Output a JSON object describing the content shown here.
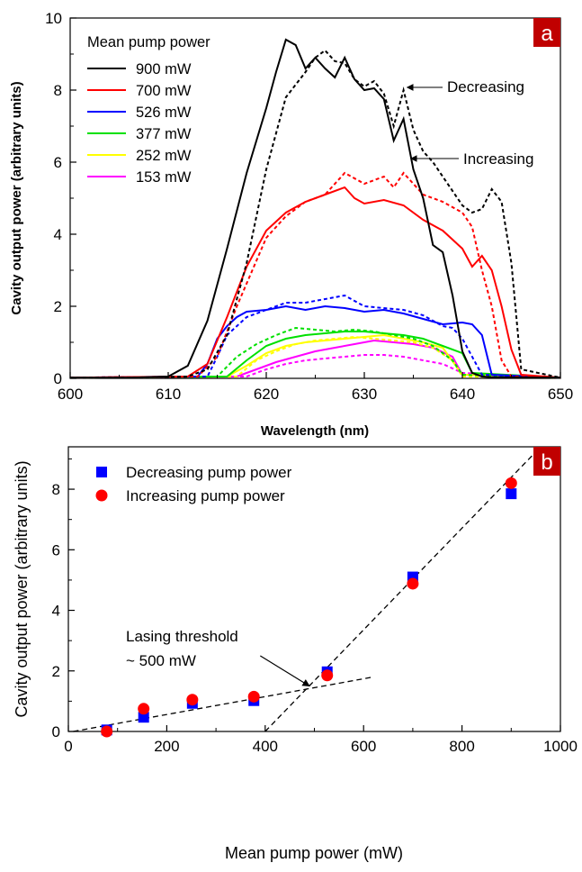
{
  "chart_data": [
    {
      "type": "line",
      "panel_label": "a",
      "xlabel": "Wavelength (nm)",
      "ylabel": "Cavity output power (arbitrary units)",
      "xlim": [
        600,
        650
      ],
      "ylim": [
        0,
        10
      ],
      "xticks": [
        600,
        610,
        620,
        630,
        640,
        650
      ],
      "yticks": [
        0,
        2,
        4,
        6,
        8,
        10
      ],
      "legend_title": "Mean pump power",
      "legend_position": "top-left",
      "line_styles": {
        "increasing": "solid",
        "decreasing": "dashed"
      },
      "annotations": [
        {
          "text": "Decreasing",
          "x": 634.0,
          "y": 7.95
        },
        {
          "text": "Increasing",
          "x": 634.2,
          "y": 6.0
        }
      ],
      "series": [
        {
          "name": "900 mW",
          "color": "#000000",
          "increasing": {
            "x": [
              600,
              606,
              610,
              612,
              614,
              616,
              618,
              620,
              621,
              622,
              623,
              624,
              625,
              626,
              627,
              628,
              629,
              630,
              631,
              632,
              633,
              634,
              635,
              636,
              637,
              638,
              639,
              640,
              641,
              642,
              643,
              650
            ],
            "y": [
              0.02,
              0.02,
              0.05,
              0.35,
              1.6,
              3.6,
              5.7,
              7.5,
              8.5,
              9.4,
              9.25,
              8.6,
              8.9,
              8.6,
              8.35,
              8.9,
              8.3,
              8.0,
              8.05,
              7.75,
              6.6,
              7.2,
              5.8,
              5.0,
              3.7,
              3.5,
              2.3,
              0.75,
              0.15,
              0.05,
              0.03,
              0.02
            ]
          },
          "decreasing": {
            "x": [
              600,
              606,
              612,
              614,
              616,
              618,
              620,
              622,
              624,
              625,
              626,
              627,
              628,
              629,
              630,
              631,
              632,
              633,
              634,
              635,
              636,
              637,
              638,
              639,
              640,
              641,
              642,
              643,
              644,
              645,
              646,
              650
            ],
            "y": [
              0.02,
              0.02,
              0.05,
              0.25,
              1.2,
              3.2,
              5.8,
              7.8,
              8.5,
              8.9,
              9.1,
              8.8,
              8.75,
              8.3,
              8.1,
              8.25,
              7.9,
              7.0,
              8.0,
              6.9,
              6.3,
              6.0,
              5.6,
              5.2,
              4.8,
              4.6,
              4.7,
              5.25,
              4.9,
              3.2,
              0.25,
              0.02
            ]
          }
        },
        {
          "name": "700 mW",
          "color": "#ff0000",
          "increasing": {
            "x": [
              600,
              612,
              614,
              616,
              618,
              620,
              622,
              624,
              626,
              628,
              629,
              630,
              632,
              634,
              636,
              638,
              640,
              641,
              642,
              643,
              644,
              645,
              646,
              650
            ],
            "y": [
              0.02,
              0.05,
              0.4,
              1.7,
              3.1,
              4.1,
              4.6,
              4.9,
              5.1,
              5.3,
              5.0,
              4.85,
              4.95,
              4.8,
              4.4,
              4.1,
              3.6,
              3.1,
              3.4,
              3.0,
              2.0,
              0.8,
              0.1,
              0.02
            ]
          },
          "decreasing": {
            "x": [
              600,
              613,
              615,
              617,
              620,
              622,
              624,
              626,
              628,
              630,
              632,
              633,
              634,
              636,
              638,
              640,
              641,
              642,
              643,
              644,
              645,
              650
            ],
            "y": [
              0.02,
              0.05,
              0.6,
              2.0,
              3.9,
              4.5,
              4.9,
              5.1,
              5.7,
              5.4,
              5.6,
              5.3,
              5.7,
              5.1,
              4.9,
              4.6,
              4.2,
              3.0,
              2.0,
              0.5,
              0.05,
              0.02
            ]
          }
        },
        {
          "name": "526 mW",
          "color": "#0000ff",
          "increasing": {
            "x": [
              600,
              613,
              614,
              615,
              616,
              617,
              618,
              620,
              622,
              624,
              626,
              628,
              630,
              632,
              634,
              636,
              638,
              640,
              641,
              642,
              643,
              650
            ],
            "y": [
              0.02,
              0.05,
              0.4,
              1.1,
              1.45,
              1.7,
              1.85,
              1.9,
              2.0,
              1.9,
              2.0,
              1.95,
              1.85,
              1.9,
              1.8,
              1.65,
              1.5,
              1.55,
              1.5,
              1.2,
              0.1,
              0.02
            ]
          },
          "decreasing": {
            "x": [
              600,
              614,
              615,
              616,
              618,
              620,
              622,
              624,
              626,
              628,
              630,
              632,
              634,
              636,
              638,
              639,
              640,
              642,
              650
            ],
            "y": [
              0.02,
              0.05,
              0.6,
              1.2,
              1.7,
              1.9,
              2.1,
              2.1,
              2.2,
              2.3,
              2.0,
              1.95,
              1.9,
              1.75,
              1.45,
              1.4,
              1.1,
              0.1,
              0.02
            ]
          }
        },
        {
          "name": "377 mW",
          "color": "#00e000",
          "increasing": {
            "x": [
              600,
              616,
              618,
              620,
              622,
              624,
              626,
              628,
              630,
              632,
              634,
              636,
              638,
              640,
              641,
              650
            ],
            "y": [
              0.02,
              0.05,
              0.5,
              0.9,
              1.1,
              1.2,
              1.25,
              1.3,
              1.3,
              1.25,
              1.2,
              1.1,
              0.9,
              0.7,
              0.15,
              0.02
            ]
          },
          "decreasing": {
            "x": [
              600,
              615,
              617,
              619,
              621,
              623,
              625,
              627,
              629,
              631,
              633,
              635,
              637,
              639,
              640,
              650
            ],
            "y": [
              0.02,
              0.05,
              0.6,
              0.95,
              1.2,
              1.4,
              1.35,
              1.3,
              1.35,
              1.3,
              1.2,
              1.1,
              0.9,
              0.5,
              0.1,
              0.02
            ]
          }
        },
        {
          "name": "252 mW",
          "color": "#ffff00",
          "increasing": {
            "x": [
              600,
              616,
              618,
              620,
              622,
              624,
              626,
              628,
              630,
              632,
              634,
              636,
              638,
              640,
              650
            ],
            "y": [
              0.02,
              0.05,
              0.35,
              0.7,
              0.9,
              1.0,
              1.05,
              1.1,
              1.15,
              1.2,
              1.1,
              1.0,
              0.85,
              0.1,
              0.02
            ]
          },
          "decreasing": {
            "x": [
              600,
              617,
              619,
              621,
              623,
              625,
              627,
              629,
              631,
              633,
              635,
              637,
              639,
              640,
              650
            ],
            "y": [
              0.02,
              0.05,
              0.5,
              0.75,
              0.95,
              1.05,
              1.1,
              1.15,
              1.1,
              1.05,
              1.0,
              0.85,
              0.5,
              0.05,
              0.02
            ]
          }
        },
        {
          "name": "153 mW",
          "color": "#ff00ff",
          "increasing": {
            "x": [
              600,
              617,
              619,
              621,
              623,
              625,
              627,
              629,
              631,
              633,
              635,
              637,
              639,
              640,
              650
            ],
            "y": [
              0.02,
              0.05,
              0.25,
              0.45,
              0.6,
              0.75,
              0.85,
              0.95,
              1.05,
              1.0,
              0.95,
              0.85,
              0.6,
              0.1,
              0.02
            ]
          },
          "decreasing": {
            "x": [
              600,
              618,
              620,
              622,
              624,
              626,
              628,
              630,
              632,
              634,
              636,
              638,
              640,
              650
            ],
            "y": [
              0.02,
              0.05,
              0.25,
              0.4,
              0.5,
              0.55,
              0.6,
              0.65,
              0.65,
              0.6,
              0.5,
              0.4,
              0.15,
              0.02
            ]
          }
        }
      ]
    },
    {
      "type": "scatter",
      "panel_label": "b",
      "xlabel": "Mean pump power (mW)",
      "ylabel": "Cavity output power (arbitrary units)",
      "xlim": [
        0,
        1000
      ],
      "ylim": [
        0,
        9.4
      ],
      "xticks": [
        0,
        200,
        400,
        600,
        800,
        1000
      ],
      "yticks": [
        0,
        2,
        4,
        6,
        8
      ],
      "legend_position": "top-left",
      "series": [
        {
          "name": "Decreasing pump power",
          "marker": "square",
          "color": "#0000ff",
          "x": [
            78,
            153,
            252,
            377,
            526,
            700,
            900
          ],
          "y": [
            0.05,
            0.47,
            0.93,
            1.02,
            1.97,
            5.1,
            7.85
          ]
        },
        {
          "name": "Increasing pump power",
          "marker": "circle",
          "color": "#ff0000",
          "x": [
            78,
            153,
            252,
            377,
            526,
            700,
            900
          ],
          "y": [
            0.0,
            0.75,
            1.05,
            1.15,
            1.85,
            4.88,
            8.2
          ]
        }
      ],
      "fit_lines": [
        {
          "style": "dashed",
          "x": [
            10,
            620
          ],
          "y": [
            0.0,
            1.8
          ]
        },
        {
          "style": "dashed",
          "x": [
            400,
            960
          ],
          "y": [
            0.0,
            9.4
          ]
        }
      ],
      "annotations": [
        {
          "text": "Lasing threshold",
          "x": 120,
          "y": 4.8
        },
        {
          "text": "~ 500 mW",
          "x": 120,
          "y": 4.0
        }
      ],
      "threshold_arrow": {
        "from": [
          390,
          2.5
        ],
        "to": [
          490,
          1.5
        ]
      }
    }
  ]
}
